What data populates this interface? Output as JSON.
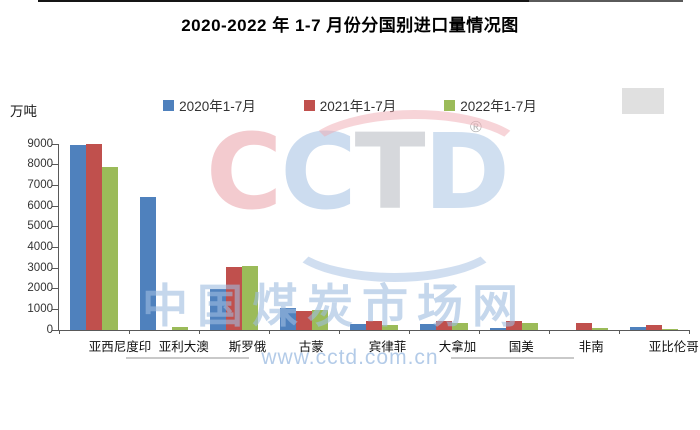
{
  "title": "2020-2022 年 1-7 月份分国别进口量情况图",
  "y_axis_unit": "万吨",
  "watermark": {
    "logo_text": "CCTD",
    "logo_letter_colors": [
      "rgba(234,160,168,0.55)",
      "rgba(170,196,228,0.6)",
      "rgba(186,190,196,0.6)",
      "rgba(170,196,228,0.55)"
    ],
    "registered_mark": "®",
    "cn_text": "中国煤炭市场网",
    "url_text": "www.cctd.com.cn"
  },
  "chart_data": {
    "type": "bar",
    "title": "2020-2022 年 1-7 月份分国别进口量情况图",
    "ylabel": "万吨",
    "xlabel": "",
    "ylim": [
      0,
      9000
    ],
    "yticks": [
      0,
      1000,
      2000,
      3000,
      4000,
      5000,
      6000,
      7000,
      8000,
      9000
    ],
    "grid": false,
    "legend_position": "top",
    "categories": [
      "印度尼西亚",
      "澳大利亚",
      "俄罗斯",
      "蒙古",
      "菲律宾",
      "加拿大",
      "美国",
      "南非",
      "哥伦比亚"
    ],
    "series": [
      {
        "name": "2020年1-7月",
        "color": "#4F81BD",
        "values": [
          8950,
          6450,
          2000,
          1050,
          270,
          290,
          100,
          0,
          130
        ]
      },
      {
        "name": "2021年1-7月",
        "color": "#C0504D",
        "values": [
          8990,
          0,
          3050,
          930,
          430,
          450,
          430,
          350,
          230
        ]
      },
      {
        "name": "2022年1-7月",
        "color": "#9BBB59",
        "values": [
          7900,
          160,
          3110,
          990,
          260,
          360,
          320,
          90,
          40
        ]
      }
    ]
  }
}
